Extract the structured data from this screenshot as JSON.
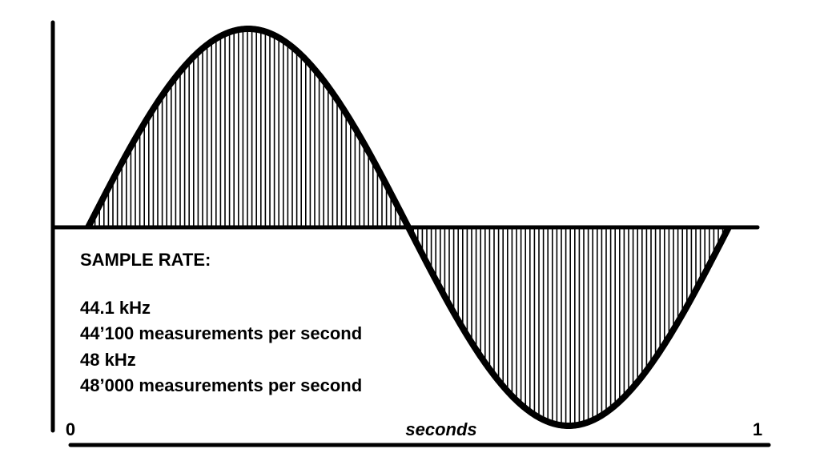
{
  "legend": {
    "title": "SAMPLE RATE:",
    "lines": [
      "44.1 kHz",
      "44’100 measurements per second",
      "48 kHz",
      "48’000 measurements per second"
    ]
  },
  "axis": {
    "start": "0",
    "label": "seconds",
    "end": "1"
  }
}
